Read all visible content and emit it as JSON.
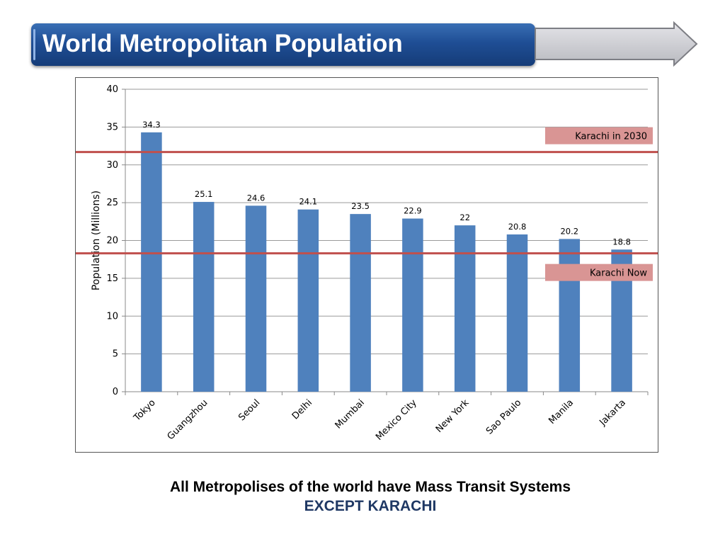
{
  "header": {
    "title": "World Metropolitan Population"
  },
  "chart_data": {
    "type": "bar",
    "ylabel": "Population (Millions)",
    "ylim": [
      0,
      40
    ],
    "yticks": [
      0,
      5,
      10,
      15,
      20,
      25,
      30,
      35,
      40
    ],
    "grid": true,
    "categories": [
      "Tokyo",
      "Guangzhou",
      "Seoul",
      "Delhi",
      "Mumbai",
      "Mexico City",
      "New York",
      "Sao Paulo",
      "Manila",
      "Jakarta"
    ],
    "values": [
      34.3,
      25.1,
      24.6,
      24.1,
      23.5,
      22.9,
      22,
      20.8,
      20.2,
      18.8
    ],
    "data_labels": [
      "34.3",
      "25.1",
      "24.6",
      "24.1",
      "23.5",
      "22.9",
      "22",
      "20.8",
      "20.2",
      "18.8"
    ],
    "reference_lines": [
      {
        "label": "Karachi in 2030",
        "value": 31.7
      },
      {
        "label": "Karachi Now",
        "value": 18.3
      }
    ]
  },
  "caption": {
    "line1": "All Metropolises of the world have Mass Transit Systems",
    "line2": "EXCEPT KARACHI"
  },
  "colors": {
    "bar": "#4f81bd",
    "reference_line": "#c0504d",
    "reference_label_bg": "#d99594",
    "caption_accent": "#1f3864"
  }
}
